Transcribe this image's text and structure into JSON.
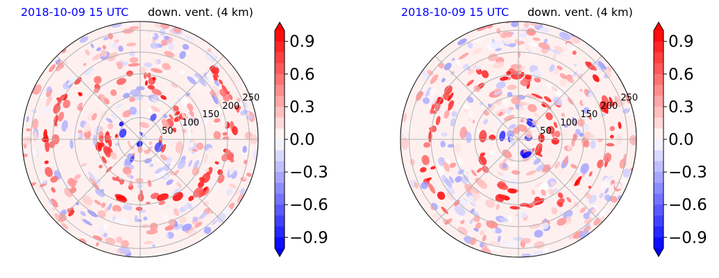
{
  "colors": {
    "positive_max": "#ff0000",
    "negative_max": "#0000ff",
    "neutral": "#ffffff",
    "grid": "#b0b0b0",
    "date_text": "#0000ff"
  },
  "chart_data": [
    {
      "type": "heatmap",
      "projection": "polar",
      "title_left": "2018-10-09 15 UTC",
      "title_right": "down. vent. (4 km)",
      "radial_ticks": [
        "50",
        "100",
        "150",
        "200",
        "250"
      ],
      "radial_values": [
        50,
        100,
        150,
        200,
        250
      ],
      "colorbar": {
        "ticks": [
          -0.9,
          -0.6,
          -0.3,
          0.0,
          0.3,
          0.6,
          0.9
        ],
        "tick_labels": [
          "−0.9",
          "−0.6",
          "−0.3",
          "0.0",
          "0.3",
          "0.6",
          "0.9"
        ],
        "range": [
          -1.0,
          1.0
        ],
        "extend": "both",
        "cmap": "bwr"
      }
    },
    {
      "type": "heatmap",
      "projection": "polar",
      "title_left": "2018-10-09 15 UTC",
      "title_right": "down. vent. (4 km)",
      "radial_ticks": [
        "50",
        "100",
        "150",
        "200",
        "250"
      ],
      "radial_values": [
        50,
        100,
        150,
        200,
        250
      ],
      "colorbar": {
        "ticks": [
          -0.9,
          -0.6,
          -0.3,
          0.0,
          0.3,
          0.6,
          0.9
        ],
        "tick_labels": [
          "−0.9",
          "−0.6",
          "−0.3",
          "0.0",
          "0.3",
          "0.6",
          "0.9"
        ],
        "range": [
          -1.0,
          1.0
        ],
        "extend": "both",
        "cmap": "bwr"
      }
    }
  ]
}
